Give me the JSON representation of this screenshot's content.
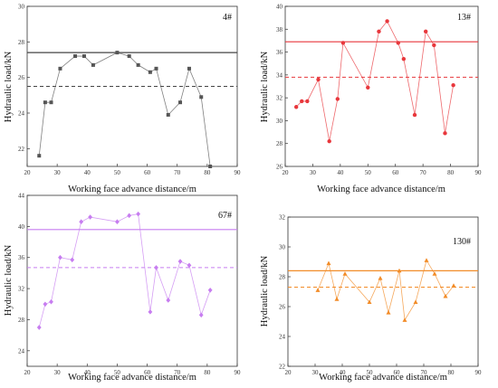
{
  "chart_data": [
    {
      "type": "line",
      "title": "4#",
      "xlabel": "Working face advance distance/m",
      "ylabel": "Hydraulic load/kN",
      "xlim": [
        20,
        90
      ],
      "ylim": [
        21,
        30
      ],
      "xticks": [
        20,
        30,
        40,
        50,
        60,
        70,
        80,
        90
      ],
      "yticks": [
        22,
        24,
        26,
        28,
        30
      ],
      "marker": "square",
      "color": "#555555",
      "mean_color": "#444444",
      "solid_line": 27.4,
      "dashed_line": 25.5,
      "x": [
        24,
        26,
        28,
        31,
        36,
        39,
        42,
        50,
        54,
        57,
        61,
        63,
        67,
        71,
        74,
        78,
        81
      ],
      "y": [
        21.6,
        24.6,
        24.6,
        26.5,
        27.2,
        27.2,
        26.7,
        27.4,
        27.2,
        26.7,
        26.3,
        26.5,
        23.9,
        24.6,
        26.5,
        24.9,
        21.0
      ]
    },
    {
      "type": "line",
      "title": "13#",
      "xlabel": "Working face advance distance/m",
      "ylabel": "Hydraulic load/kN",
      "xlim": [
        20,
        90
      ],
      "ylim": [
        26,
        40
      ],
      "xticks": [
        20,
        30,
        40,
        50,
        60,
        70,
        80,
        90
      ],
      "yticks": [
        26,
        28,
        30,
        32,
        34,
        36,
        38,
        40
      ],
      "marker": "circle",
      "color": "#e8373c",
      "mean_color": "#e8373c",
      "solid_line": 36.9,
      "dashed_line": 33.8,
      "x": [
        24,
        26,
        28,
        32,
        36,
        39,
        41,
        50,
        54,
        57,
        61,
        63,
        67,
        71,
        74,
        78,
        81
      ],
      "y": [
        31.2,
        31.7,
        31.7,
        33.6,
        28.2,
        31.9,
        36.8,
        32.9,
        37.8,
        38.7,
        36.8,
        35.4,
        30.5,
        37.8,
        36.6,
        28.9,
        33.1
      ]
    },
    {
      "type": "line",
      "title": "67#",
      "xlabel": "Working face advance distance/m",
      "ylabel": "Hydraulic load/kN",
      "xlim": [
        20,
        90
      ],
      "ylim": [
        22,
        44
      ],
      "xticks": [
        20,
        30,
        40,
        50,
        60,
        70,
        80,
        90
      ],
      "yticks": [
        24,
        28,
        32,
        36,
        40,
        44
      ],
      "marker": "diamond",
      "color": "#c77df0",
      "mean_color": "#c77df0",
      "solid_line": 39.6,
      "dashed_line": 34.7,
      "x": [
        24,
        26,
        28,
        31,
        35,
        38,
        41,
        50,
        54,
        57,
        61,
        63,
        67,
        71,
        74,
        78,
        81
      ],
      "y": [
        27.0,
        30.0,
        30.3,
        36.0,
        35.7,
        40.6,
        41.2,
        40.6,
        41.4,
        41.6,
        29.0,
        34.7,
        30.5,
        35.5,
        35.0,
        28.6,
        31.8
      ]
    },
    {
      "type": "line",
      "title": "130#",
      "xlabel": "Working face advance distance/m",
      "ylabel": "Hydraulic load/kN",
      "xlim": [
        20,
        90
      ],
      "ylim": [
        22,
        32
      ],
      "xticks": [
        20,
        30,
        40,
        50,
        60,
        70,
        80,
        90
      ],
      "yticks": [
        22,
        24,
        26,
        28,
        30,
        32
      ],
      "marker": "triangle",
      "color": "#f28c28",
      "mean_color": "#f28c28",
      "solid_line": 28.4,
      "dashed_line": 27.3,
      "x": [
        31,
        35,
        38,
        41,
        50,
        54,
        57,
        61,
        63,
        67,
        71,
        74,
        78,
        81
      ],
      "y": [
        27.1,
        28.9,
        26.5,
        28.2,
        26.3,
        27.9,
        25.6,
        28.4,
        25.1,
        26.3,
        29.1,
        28.2,
        26.7,
        27.4
      ]
    }
  ]
}
